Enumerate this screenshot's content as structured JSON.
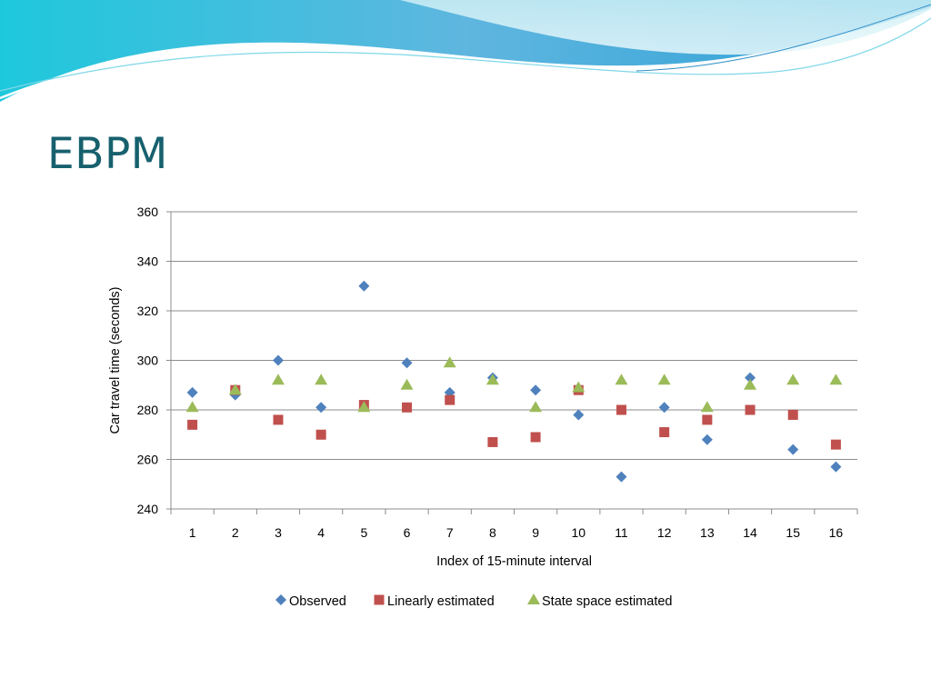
{
  "slide": {
    "title": "EBPM"
  },
  "chart_data": {
    "type": "scatter",
    "xlabel": "Index of 15-minute interval",
    "ylabel": "Car travel time (seconds)",
    "ylim": [
      240,
      360
    ],
    "yticks": [
      240,
      260,
      280,
      300,
      320,
      340,
      360
    ],
    "categories": [
      "1",
      "2",
      "3",
      "4",
      "5",
      "6",
      "7",
      "8",
      "9",
      "10",
      "11",
      "12",
      "13",
      "14",
      "15",
      "16"
    ],
    "grid": "horizontal",
    "legend_position": "bottom",
    "series": [
      {
        "name": "Observed",
        "marker": "diamond",
        "color": "#4f81bd",
        "values": [
          287,
          286,
          300,
          281,
          330,
          299,
          287,
          293,
          288,
          278,
          253,
          281,
          268,
          293,
          264,
          257
        ]
      },
      {
        "name": "Linearly estimated",
        "marker": "square",
        "color": "#c0504d",
        "values": [
          274,
          288,
          276,
          270,
          282,
          281,
          284,
          267,
          269,
          288,
          280,
          271,
          276,
          280,
          278,
          266
        ]
      },
      {
        "name": "State space estimated",
        "marker": "triangle",
        "color": "#9bbb59",
        "values": [
          281,
          288,
          292,
          292,
          281,
          290,
          299,
          292,
          281,
          289,
          292,
          292,
          281,
          290,
          292,
          292
        ]
      }
    ]
  }
}
